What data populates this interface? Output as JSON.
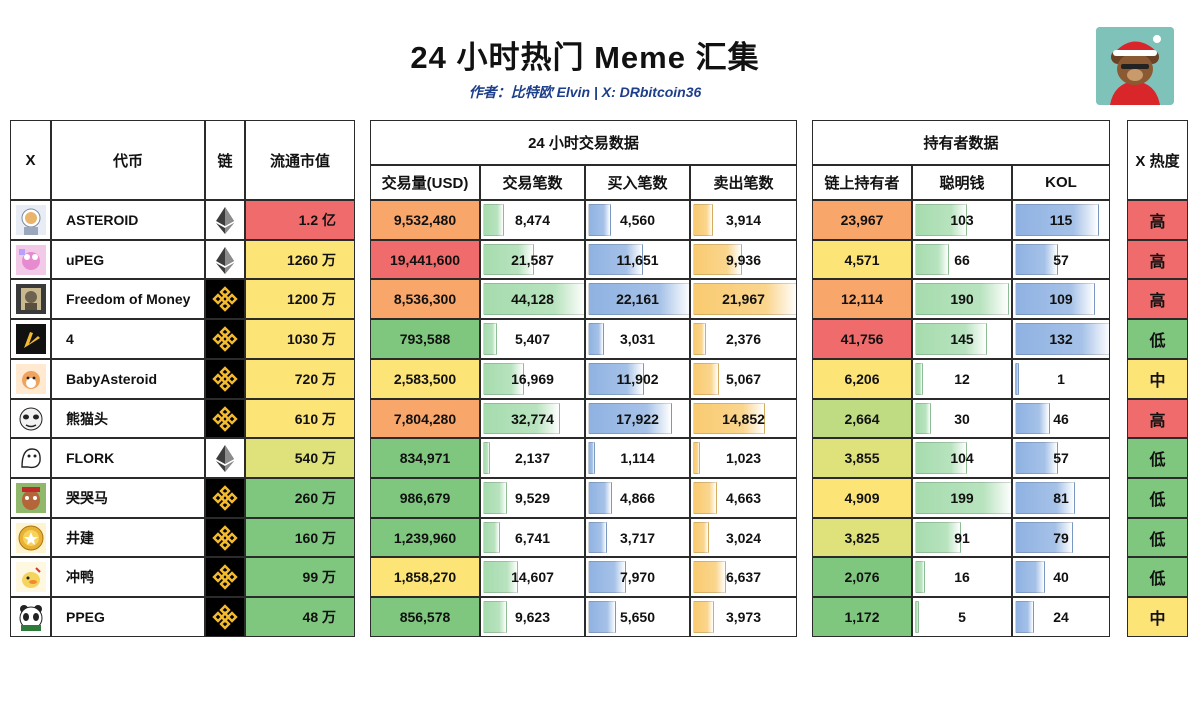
{
  "header": {
    "title": "24 小时热门 Meme 汇集",
    "subtitle": "作者：比特欧 Elvin | X: DRbitcoin36"
  },
  "colors": {
    "red": "#f06b6b",
    "orange": "#f9a66b",
    "yellow": "#fde476",
    "yellow_green": "#dfe27a",
    "light_green": "#c0dc82",
    "green": "#7fc77e",
    "bar_green": "#a6dcae",
    "bar_blue": "#8fb2e2",
    "bar_orange": "#f9cb71",
    "heat_high": "#f06b6b",
    "heat_mid": "#fde476",
    "heat_low": "#7fc77e",
    "bnb_bg": "#000000",
    "bnb_gold": "#f3ba2f"
  },
  "columns": {
    "x": "X",
    "token": "代币",
    "chain": "链",
    "mcap": "流通市值",
    "trade_group": "24 小时交易数据",
    "volume": "交易量(USD)",
    "trades": "交易笔数",
    "buys": "买入笔数",
    "sells": "卖出笔数",
    "holder_group": "持有者数据",
    "holders": "链上持有者",
    "smart": "聪明钱",
    "kol": "KOL",
    "heat": "X 热度"
  },
  "chart_data": {
    "type": "table",
    "title": "24 小时热门 Meme 汇集",
    "rows": [
      {
        "icon": "astronaut-dog-avatar",
        "token": "ASTEROID",
        "chain": "ETH",
        "mcap": "1.2 亿",
        "volume": "9,532,480",
        "trades": "8,474",
        "trades_v": 8474,
        "buys": "4,560",
        "buys_v": 4560,
        "sells": "3,914",
        "sells_v": 3914,
        "holders": "23,967",
        "smart": "103",
        "smart_v": 103,
        "kol": "115",
        "kol_v": 115,
        "heat": "高",
        "mcap_color": "#f06b6b",
        "volume_color": "#f9a66b",
        "holders_color": "#f9a66b",
        "heat_color": "#f06b6b"
      },
      {
        "icon": "pink-frog-avatar",
        "token": "uPEG",
        "chain": "ETH",
        "mcap": "1260 万",
        "volume": "19,441,600",
        "trades": "21,587",
        "trades_v": 21587,
        "buys": "11,651",
        "buys_v": 11651,
        "sells": "9,936",
        "sells_v": 9936,
        "holders": "4,571",
        "smart": "66",
        "smart_v": 66,
        "kol": "57",
        "kol_v": 57,
        "heat": "高",
        "mcap_color": "#fde476",
        "volume_color": "#f06b6b",
        "holders_color": "#fde476",
        "heat_color": "#f06b6b"
      },
      {
        "icon": "portrait-avatar",
        "token": "Freedom of Money",
        "chain": "BNB",
        "mcap": "1200 万",
        "volume": "8,536,300",
        "trades": "44,128",
        "trades_v": 44128,
        "buys": "22,161",
        "buys_v": 22161,
        "sells": "21,967",
        "sells_v": 21967,
        "holders": "12,114",
        "smart": "190",
        "smart_v": 190,
        "kol": "109",
        "kol_v": 109,
        "heat": "高",
        "mcap_color": "#fde476",
        "volume_color": "#f9a66b",
        "holders_color": "#f9a66b",
        "heat_color": "#f06b6b"
      },
      {
        "icon": "hand-four-avatar",
        "token": "4",
        "chain": "BNB",
        "mcap": "1030 万",
        "volume": "793,588",
        "trades": "5,407",
        "trades_v": 5407,
        "buys": "3,031",
        "buys_v": 3031,
        "sells": "2,376",
        "sells_v": 2376,
        "holders": "41,756",
        "smart": "145",
        "smart_v": 145,
        "kol": "132",
        "kol_v": 132,
        "heat": "低",
        "mcap_color": "#fde476",
        "volume_color": "#7fc77e",
        "holders_color": "#f06b6b",
        "heat_color": "#7fc77e"
      },
      {
        "icon": "shiba-avatar",
        "token": "BabyAsteroid",
        "chain": "BNB",
        "mcap": "720 万",
        "volume": "2,583,500",
        "trades": "16,969",
        "trades_v": 16969,
        "buys": "11,902",
        "buys_v": 11902,
        "sells": "5,067",
        "sells_v": 5067,
        "holders": "6,206",
        "smart": "12",
        "smart_v": 12,
        "kol": "1",
        "kol_v": 1,
        "heat": "中",
        "mcap_color": "#fde476",
        "volume_color": "#fde476",
        "holders_color": "#fde476",
        "heat_color": "#fde476"
      },
      {
        "icon": "panda-meme-avatar",
        "token": "熊猫头",
        "chain": "BNB",
        "mcap": "610 万",
        "volume": "7,804,280",
        "trades": "32,774",
        "trades_v": 32774,
        "buys": "17,922",
        "buys_v": 17922,
        "sells": "14,852",
        "sells_v": 14852,
        "holders": "2,664",
        "smart": "30",
        "smart_v": 30,
        "kol": "46",
        "kol_v": 46,
        "heat": "高",
        "mcap_color": "#fde476",
        "volume_color": "#f9a66b",
        "holders_color": "#c0dc82",
        "heat_color": "#f06b6b"
      },
      {
        "icon": "flork-avatar",
        "token": "FLORK",
        "chain": "ETH",
        "mcap": "540 万",
        "volume": "834,971",
        "trades": "2,137",
        "trades_v": 2137,
        "buys": "1,114",
        "buys_v": 1114,
        "sells": "1,023",
        "sells_v": 1023,
        "holders": "3,855",
        "smart": "104",
        "smart_v": 104,
        "kol": "57",
        "kol_v": 57,
        "heat": "低",
        "mcap_color": "#dfe27a",
        "volume_color": "#7fc77e",
        "holders_color": "#dfe27a",
        "heat_color": "#7fc77e"
      },
      {
        "icon": "crying-horse-avatar",
        "token": "哭哭马",
        "chain": "BNB",
        "mcap": "260 万",
        "volume": "986,679",
        "trades": "9,529",
        "trades_v": 9529,
        "buys": "4,866",
        "buys_v": 4866,
        "sells": "4,663",
        "sells_v": 4663,
        "holders": "4,909",
        "smart": "199",
        "smart_v": 199,
        "kol": "81",
        "kol_v": 81,
        "heat": "低",
        "mcap_color": "#7fc77e",
        "volume_color": "#7fc77e",
        "holders_color": "#fde476",
        "heat_color": "#7fc77e"
      },
      {
        "icon": "gold-coin-avatar",
        "token": "井建",
        "chain": "BNB",
        "mcap": "160 万",
        "volume": "1,239,960",
        "trades": "6,741",
        "trades_v": 6741,
        "buys": "3,717",
        "buys_v": 3717,
        "sells": "3,024",
        "sells_v": 3024,
        "holders": "3,825",
        "smart": "91",
        "smart_v": 91,
        "kol": "79",
        "kol_v": 79,
        "heat": "低",
        "mcap_color": "#7fc77e",
        "volume_color": "#7fc77e",
        "holders_color": "#dfe27a",
        "heat_color": "#7fc77e"
      },
      {
        "icon": "duck-avatar",
        "token": "冲鸭",
        "chain": "BNB",
        "mcap": "99 万",
        "volume": "1,858,270",
        "trades": "14,607",
        "trades_v": 14607,
        "buys": "7,970",
        "buys_v": 7970,
        "sells": "6,637",
        "sells_v": 6637,
        "holders": "2,076",
        "smart": "16",
        "smart_v": 16,
        "kol": "40",
        "kol_v": 40,
        "heat": "低",
        "mcap_color": "#7fc77e",
        "volume_color": "#fde476",
        "holders_color": "#7fc77e",
        "heat_color": "#7fc77e"
      },
      {
        "icon": "panda-avatar",
        "token": "PPEG",
        "chain": "BNB",
        "mcap": "48 万",
        "volume": "856,578",
        "trades": "9,623",
        "trades_v": 9623,
        "buys": "5,650",
        "buys_v": 5650,
        "sells": "3,973",
        "sells_v": 3973,
        "holders": "1,172",
        "smart": "5",
        "smart_v": 5,
        "kol": "24",
        "kol_v": 24,
        "heat": "中",
        "mcap_color": "#7fc77e",
        "volume_color": "#7fc77e",
        "holders_color": "#7fc77e",
        "heat_color": "#fde476"
      }
    ]
  }
}
